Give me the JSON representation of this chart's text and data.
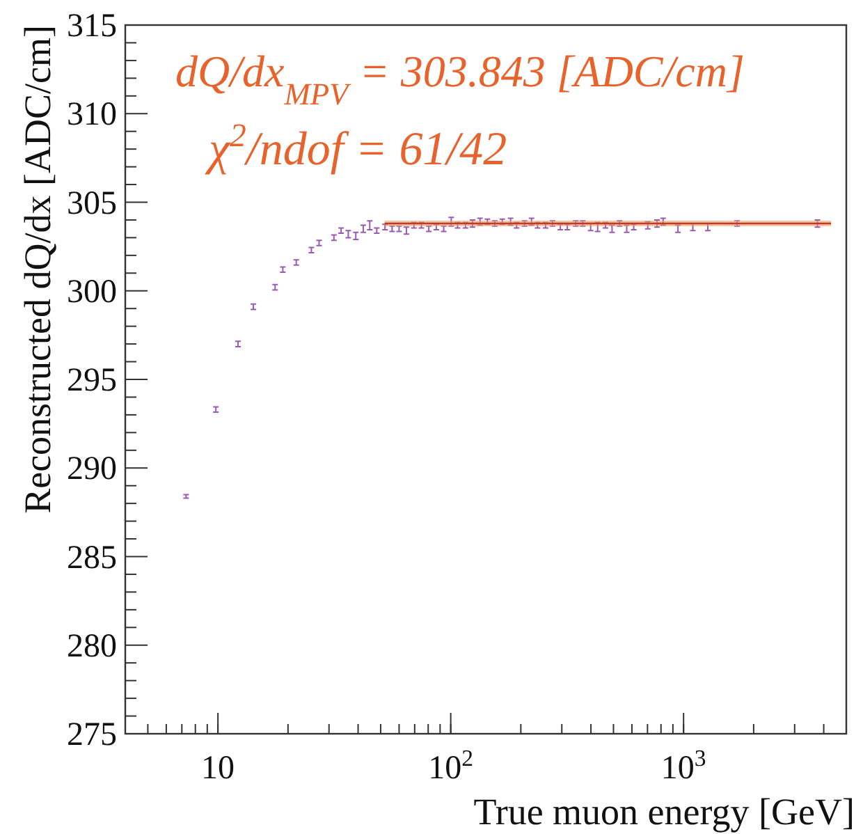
{
  "chart_data": {
    "type": "scatter",
    "xlabel": "True muon energy [GeV]",
    "ylabel": "Reconstructed dQ/dx [ADC/cm]",
    "annotations": [
      "dQ/dx$_{MPV}$ = 303.843 [ADC/cm]",
      "χ$^{2}$/ndof = 61/42"
    ],
    "log": "x",
    "xlim": [
      4,
      5000
    ],
    "xticks": [
      10,
      {
        "value": 100,
        "label": "10$^{2}$"
      },
      {
        "value": 1000,
        "label": "10$^{3}$"
      }
    ],
    "ylim": [
      275,
      315
    ],
    "yticks": [
      275,
      280,
      285,
      290,
      295,
      300,
      305,
      310,
      315
    ],
    "grid": false,
    "series": [
      {
        "color": "#9b59b6",
        "x": [
          7.3,
          9.8,
          12.2,
          14.2,
          17.6,
          19.0,
          21.7,
          25.2,
          27.2,
          31.5,
          33.8,
          36.3,
          39.1,
          42.1,
          44.9,
          48.1,
          52.2,
          56.0,
          60.0,
          64.5,
          69.5,
          74.8,
          80.5,
          86.7,
          93.3,
          100.5,
          107,
          115.7,
          124,
          133.6,
          143.7,
          154.6,
          166.5,
          180.7,
          191.8,
          207.5,
          222.3,
          236,
          255.4,
          273.6,
          295.6,
          316.8,
          344.4,
          369,
          399,
          427.6,
          462,
          493,
          531,
          570,
          611,
          702,
          769,
          817,
          946,
          1096,
          1271,
          1698,
          3758
        ],
        "values": [
          288.4,
          293.3,
          297.0,
          299.1,
          300.2,
          301.2,
          301.6,
          302.3,
          302.7,
          303.0,
          303.4,
          303.2,
          303.1,
          303.5,
          303.7,
          303.4,
          303.6,
          303.5,
          303.5,
          303.4,
          303.7,
          303.7,
          303.5,
          303.6,
          303.5,
          303.9,
          303.7,
          303.7,
          303.8,
          303.9,
          303.9,
          303.8,
          303.9,
          303.9,
          303.7,
          303.8,
          303.9,
          303.7,
          303.7,
          303.8,
          303.6,
          303.6,
          303.8,
          303.8,
          303.6,
          303.6,
          303.7,
          303.5,
          303.8,
          303.5,
          303.6,
          303.7,
          303.8,
          303.9,
          303.5,
          303.6,
          303.6,
          303.8,
          303.8
        ],
        "errors": [
          0.1,
          0.15,
          0.15,
          0.15,
          0.15,
          0.15,
          0.15,
          0.15,
          0.15,
          0.15,
          0.15,
          0.2,
          0.2,
          0.2,
          0.25,
          0.15,
          0.15,
          0.15,
          0.15,
          0.2,
          0.15,
          0.15,
          0.15,
          0.15,
          0.15,
          0.25,
          0.15,
          0.15,
          0.2,
          0.2,
          0.15,
          0.15,
          0.15,
          0.2,
          0.15,
          0.15,
          0.2,
          0.15,
          0.15,
          0.15,
          0.15,
          0.15,
          0.15,
          0.15,
          0.2,
          0.25,
          0.15,
          0.2,
          0.15,
          0.2,
          0.15,
          0.2,
          0.2,
          0.2,
          0.2,
          0.2,
          0.2,
          0.15,
          0.2
        ]
      },
      {
        "type": "line",
        "color": "#c0392b",
        "x": [
          52,
          4300
        ],
        "values": [
          303.8,
          303.8
        ]
      }
    ]
  }
}
